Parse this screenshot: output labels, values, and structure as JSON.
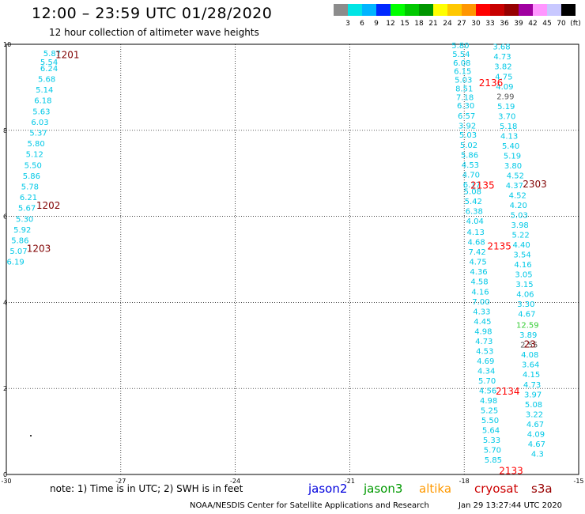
{
  "header": {
    "title": "12:00 – 23:59 UTC 01/28/2020",
    "subtitle": "12 hour collection of altimeter wave heights"
  },
  "colorbar": {
    "colors": [
      "#8c8c8c",
      "#00e5e5",
      "#00b4ff",
      "#0028ff",
      "#00ff00",
      "#00c800",
      "#009600",
      "#ffff00",
      "#ffc800",
      "#ff9600",
      "#ff0000",
      "#c80000",
      "#960000",
      "#a000a0",
      "#ff96ff",
      "#c8c8ff",
      "#000000"
    ],
    "labels": [
      "3",
      "6",
      "9",
      "12",
      "15",
      "18",
      "21",
      "24",
      "27",
      "30",
      "33",
      "36",
      "39",
      "42",
      "45",
      "70",
      "(ft)"
    ]
  },
  "axes": {
    "x_ticks": [
      "-30",
      "-27",
      "-24",
      "-21",
      "-18",
      "-15"
    ],
    "y_ticks": [
      "0",
      "2",
      "4",
      "6",
      "8",
      "10"
    ]
  },
  "chart_data": {
    "type": "scatter",
    "xlim": [
      -30,
      -15
    ],
    "ylim": [
      0,
      10
    ],
    "grid": true,
    "tracks": [
      {
        "id": "left",
        "points": [
          {
            "x": -28.8,
            "y": 9.8,
            "v": "5.87"
          },
          {
            "x": -28.88,
            "y": 9.6,
            "v": "5.54"
          },
          {
            "x": -28.88,
            "y": 9.45,
            "v": "6.24"
          },
          {
            "x": -28.94,
            "y": 9.2,
            "v": "5.68"
          },
          {
            "x": -29.0,
            "y": 8.95,
            "v": "5.14"
          },
          {
            "x": -29.04,
            "y": 8.7,
            "v": "6.18"
          },
          {
            "x": -29.08,
            "y": 8.45,
            "v": "5.63"
          },
          {
            "x": -29.12,
            "y": 8.2,
            "v": "6.03"
          },
          {
            "x": -29.16,
            "y": 7.95,
            "v": "5.37"
          },
          {
            "x": -29.22,
            "y": 7.7,
            "v": "5.80"
          },
          {
            "x": -29.26,
            "y": 7.45,
            "v": "5.12"
          },
          {
            "x": -29.3,
            "y": 7.2,
            "v": "5.50"
          },
          {
            "x": -29.34,
            "y": 6.95,
            "v": "5.86"
          },
          {
            "x": -29.38,
            "y": 6.7,
            "v": "5.78"
          },
          {
            "x": -29.42,
            "y": 6.45,
            "v": "6.21"
          },
          {
            "x": -29.46,
            "y": 6.2,
            "v": "5.67"
          },
          {
            "x": -29.52,
            "y": 5.95,
            "v": "5.30"
          },
          {
            "x": -29.58,
            "y": 5.7,
            "v": "5.92"
          },
          {
            "x": -29.64,
            "y": 5.45,
            "v": "5.86"
          },
          {
            "x": -29.68,
            "y": 5.2,
            "v": "5.07"
          },
          {
            "x": -29.76,
            "y": 4.95,
            "v": "6.19"
          }
        ]
      },
      {
        "id": "center-1",
        "points": [
          {
            "x": -18.1,
            "y": 9.98,
            "v": "5.80"
          },
          {
            "x": -18.08,
            "y": 9.78,
            "v": "5.54"
          },
          {
            "x": -18.06,
            "y": 9.58,
            "v": "6.08"
          },
          {
            "x": -18.04,
            "y": 9.38,
            "v": "6.15"
          },
          {
            "x": -18.02,
            "y": 9.18,
            "v": "5.03"
          },
          {
            "x": -18.0,
            "y": 8.98,
            "v": "8.51"
          },
          {
            "x": -17.98,
            "y": 8.78,
            "v": "7.18"
          },
          {
            "x": -17.96,
            "y": 8.58,
            "v": "6.30"
          },
          {
            "x": -17.94,
            "y": 8.35,
            "v": "6.57"
          },
          {
            "x": -17.92,
            "y": 8.12,
            "v": "3.92"
          },
          {
            "x": -17.9,
            "y": 7.9,
            "v": "5.03"
          },
          {
            "x": -17.88,
            "y": 7.67,
            "v": "5.02"
          },
          {
            "x": -17.86,
            "y": 7.44,
            "v": "5.86"
          },
          {
            "x": -17.84,
            "y": 7.21,
            "v": "4.53"
          },
          {
            "x": -17.82,
            "y": 6.98,
            "v": "4.70"
          },
          {
            "x": -17.8,
            "y": 6.75,
            "v": "6.17"
          },
          {
            "x": -17.78,
            "y": 6.59,
            "v": "5.08"
          },
          {
            "x": -17.76,
            "y": 6.36,
            "v": "5.42"
          },
          {
            "x": -17.74,
            "y": 6.13,
            "v": "6.38"
          },
          {
            "x": -17.72,
            "y": 5.9,
            "v": "4.04"
          },
          {
            "x": -17.7,
            "y": 5.64,
            "v": "4.13"
          },
          {
            "x": -17.68,
            "y": 5.41,
            "v": "4.68"
          },
          {
            "x": -17.66,
            "y": 5.18,
            "v": "7.42"
          },
          {
            "x": -17.64,
            "y": 4.95,
            "v": "4.75"
          },
          {
            "x": -17.62,
            "y": 4.72,
            "v": "4.36"
          },
          {
            "x": -17.6,
            "y": 4.49,
            "v": "4.58"
          },
          {
            "x": -17.58,
            "y": 4.26,
            "v": "4.16"
          },
          {
            "x": -17.56,
            "y": 4.03,
            "v": "7.00"
          },
          {
            "x": -17.54,
            "y": 3.8,
            "v": "4.33"
          },
          {
            "x": -17.52,
            "y": 3.57,
            "v": "4.45"
          },
          {
            "x": -17.5,
            "y": 3.34,
            "v": "4.98"
          },
          {
            "x": -17.48,
            "y": 3.11,
            "v": "4.73"
          },
          {
            "x": -17.46,
            "y": 2.88,
            "v": "4.53"
          },
          {
            "x": -17.44,
            "y": 2.65,
            "v": "4.69"
          },
          {
            "x": -17.42,
            "y": 2.42,
            "v": "4.34"
          },
          {
            "x": -17.4,
            "y": 2.19,
            "v": "5.70"
          },
          {
            "x": -17.38,
            "y": 1.96,
            "v": "4.56"
          },
          {
            "x": -17.36,
            "y": 1.73,
            "v": "4.98"
          },
          {
            "x": -17.34,
            "y": 1.5,
            "v": "5.25"
          },
          {
            "x": -17.32,
            "y": 1.27,
            "v": "5.50"
          },
          {
            "x": -17.3,
            "y": 1.04,
            "v": "5.64"
          },
          {
            "x": -17.28,
            "y": 0.81,
            "v": "5.33"
          },
          {
            "x": -17.26,
            "y": 0.58,
            "v": "5.70"
          },
          {
            "x": -17.24,
            "y": 0.35,
            "v": "5.85"
          }
        ]
      },
      {
        "id": "center-2",
        "points": [
          {
            "x": -17.02,
            "y": 9.95,
            "v": "3.68"
          },
          {
            "x": -17.0,
            "y": 9.72,
            "v": "4.73"
          },
          {
            "x": -16.98,
            "y": 9.49,
            "v": "3.82"
          },
          {
            "x": -16.96,
            "y": 9.26,
            "v": "4.75"
          },
          {
            "x": -16.94,
            "y": 9.03,
            "v": "4.09"
          },
          {
            "x": -16.92,
            "y": 8.8,
            "v": "2.99",
            "c": "#555555"
          },
          {
            "x": -16.9,
            "y": 8.57,
            "v": "5.19"
          },
          {
            "x": -16.88,
            "y": 8.34,
            "v": "3.70"
          },
          {
            "x": -16.84,
            "y": 8.11,
            "v": "5.18"
          },
          {
            "x": -16.82,
            "y": 7.88,
            "v": "4.13"
          },
          {
            "x": -16.78,
            "y": 7.65,
            "v": "5.40"
          },
          {
            "x": -16.74,
            "y": 7.42,
            "v": "5.19"
          },
          {
            "x": -16.72,
            "y": 7.19,
            "v": "3.80"
          },
          {
            "x": -16.66,
            "y": 6.96,
            "v": "4.52"
          },
          {
            "x": -16.68,
            "y": 6.73,
            "v": "4.37"
          },
          {
            "x": -16.6,
            "y": 6.5,
            "v": "4.52"
          },
          {
            "x": -16.58,
            "y": 6.27,
            "v": "4.20"
          },
          {
            "x": -16.56,
            "y": 6.04,
            "v": "5.03"
          },
          {
            "x": -16.54,
            "y": 5.81,
            "v": "3.98"
          },
          {
            "x": -16.52,
            "y": 5.58,
            "v": "5.22"
          },
          {
            "x": -16.5,
            "y": 5.35,
            "v": "4.40"
          },
          {
            "x": -16.48,
            "y": 5.12,
            "v": "3.54"
          },
          {
            "x": -16.46,
            "y": 4.89,
            "v": "4.16"
          },
          {
            "x": -16.44,
            "y": 4.66,
            "v": "3.05"
          },
          {
            "x": -16.42,
            "y": 4.43,
            "v": "3.15"
          },
          {
            "x": -16.4,
            "y": 4.2,
            "v": "4.06"
          },
          {
            "x": -16.38,
            "y": 3.97,
            "v": "3.30"
          },
          {
            "x": -16.36,
            "y": 3.74,
            "v": "4.67"
          },
          {
            "x": -16.34,
            "y": 3.48,
            "v": "12.59",
            "c": "#33cc33"
          },
          {
            "x": -16.32,
            "y": 3.25,
            "v": "3.89"
          },
          {
            "x": -16.3,
            "y": 3.02,
            "v": "2.55",
            "c": "#555555"
          },
          {
            "x": -16.28,
            "y": 2.79,
            "v": "4.08"
          },
          {
            "x": -16.26,
            "y": 2.56,
            "v": "3.64"
          },
          {
            "x": -16.24,
            "y": 2.33,
            "v": "4.15"
          },
          {
            "x": -16.22,
            "y": 2.1,
            "v": "4.73"
          },
          {
            "x": -16.2,
            "y": 1.87,
            "v": "3.97"
          },
          {
            "x": -16.18,
            "y": 1.64,
            "v": "5.08"
          },
          {
            "x": -16.16,
            "y": 1.41,
            "v": "3.22"
          },
          {
            "x": -16.14,
            "y": 1.18,
            "v": "4.67"
          },
          {
            "x": -16.12,
            "y": 0.95,
            "v": "4.09"
          },
          {
            "x": -16.1,
            "y": 0.72,
            "v": "4.67"
          },
          {
            "x": -16.08,
            "y": 0.49,
            "v": "4.3"
          }
        ]
      }
    ],
    "time_labels": [
      {
        "x": -28.4,
        "y": 9.75,
        "v": "1201",
        "c": "#800000"
      },
      {
        "x": -28.9,
        "y": 6.25,
        "v": "1202",
        "c": "#800000"
      },
      {
        "x": -29.15,
        "y": 5.25,
        "v": "1203",
        "c": "#800000"
      },
      {
        "x": -17.3,
        "y": 9.1,
        "v": "2136",
        "c": "#ff0000"
      },
      {
        "x": -17.52,
        "y": 6.72,
        "v": "2135",
        "c": "#ff0000"
      },
      {
        "x": -16.15,
        "y": 6.75,
        "v": "2303",
        "c": "#800000"
      },
      {
        "x": -17.08,
        "y": 5.3,
        "v": "2135",
        "c": "#ff0000"
      },
      {
        "x": -16.28,
        "y": 3.02,
        "v": "23",
        "c": "#800000"
      },
      {
        "x": -16.86,
        "y": 1.93,
        "v": "2134",
        "c": "#ff0000"
      },
      {
        "x": -16.77,
        "y": 0.08,
        "v": "2133",
        "c": "#ff0000"
      }
    ]
  },
  "footer": {
    "note": "note: 1) Time is in UTC; 2) SWH is in feet",
    "satellites": [
      {
        "label": "jason2",
        "color": "#0000dd"
      },
      {
        "label": "jason3",
        "color": "#009900"
      },
      {
        "label": "altika",
        "color": "#ff9900"
      },
      {
        "label": "cryosat",
        "color": "#cc0000"
      },
      {
        "label": "s3a",
        "color": "#990000"
      }
    ],
    "credit": "NOAA/NESDIS Center for Satellite Applications and Research",
    "timestamp": "Jan 29 13:27:44 UTC 2020"
  }
}
